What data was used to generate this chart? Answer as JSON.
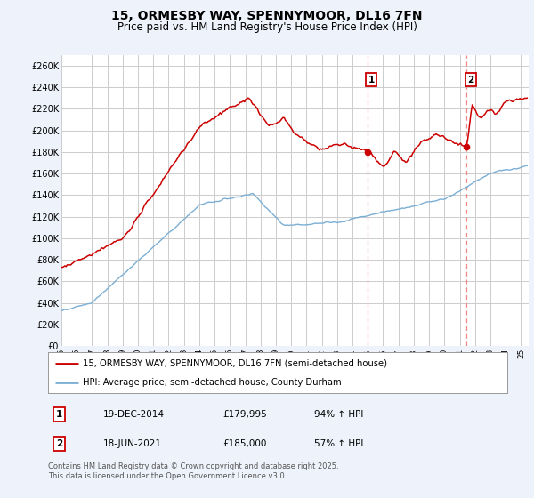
{
  "title": "15, ORMESBY WAY, SPENNYMOOR, DL16 7FN",
  "subtitle": "Price paid vs. HM Land Registry's House Price Index (HPI)",
  "ylabel_ticks": [
    "£0",
    "£20K",
    "£40K",
    "£60K",
    "£80K",
    "£100K",
    "£120K",
    "£140K",
    "£160K",
    "£180K",
    "£200K",
    "£220K",
    "£240K",
    "£260K"
  ],
  "ytick_values": [
    0,
    20000,
    40000,
    60000,
    80000,
    100000,
    120000,
    140000,
    160000,
    180000,
    200000,
    220000,
    240000,
    260000
  ],
  "ylim": [
    0,
    270000
  ],
  "xmin": 1995,
  "xmax": 2025.5,
  "marker1_x": 2014.97,
  "marker1_y": 179995,
  "marker1_label": "1",
  "marker1_date": "19-DEC-2014",
  "marker1_price": "£179,995",
  "marker1_hpi": "94% ↑ HPI",
  "marker2_x": 2021.46,
  "marker2_y": 185000,
  "marker2_label": "2",
  "marker2_date": "18-JUN-2021",
  "marker2_price": "£185,000",
  "marker2_hpi": "57% ↑ HPI",
  "legend_line1": "15, ORMESBY WAY, SPENNYMOOR, DL16 7FN (semi-detached house)",
  "legend_line2": "HPI: Average price, semi-detached house, County Durham",
  "footer": "Contains HM Land Registry data © Crown copyright and database right 2025.\nThis data is licensed under the Open Government Licence v3.0.",
  "line_color_red": "#cc0000",
  "line_color_blue": "#7bafd4",
  "background_color": "#eef2fa",
  "plot_bg_color": "#ffffff",
  "grid_color": "#cccccc",
  "vline_color": "#ee8888"
}
